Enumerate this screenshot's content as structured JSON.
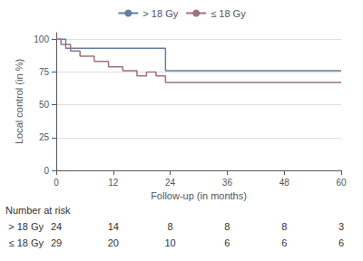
{
  "chart_data": {
    "type": "step",
    "xlabel": "Follow-up (in months)",
    "ylabel": "Local control (in %)",
    "xlim": [
      0,
      60
    ],
    "xticks": [
      0,
      12,
      24,
      36,
      48,
      60
    ],
    "ylim": [
      0,
      105
    ],
    "yticks": [
      0,
      25,
      50,
      75,
      100
    ],
    "grid": true,
    "legend": "top",
    "series": [
      {
        "name": "> 18 Gy",
        "color": "#6080a0",
        "x": [
          0,
          1,
          2,
          22,
          23,
          60
        ],
        "values": [
          100,
          100,
          93,
          93,
          76,
          76
        ]
      },
      {
        "name": "≤ 18 Gy",
        "color": "#a07080",
        "x": [
          0,
          1,
          3,
          5,
          8,
          11,
          14,
          17,
          19,
          21,
          23,
          60
        ],
        "values": [
          100,
          96,
          91,
          87,
          83,
          79,
          76,
          72,
          75,
          72,
          67,
          67
        ]
      }
    ],
    "risk_table": {
      "title": "Number at risk",
      "x": [
        0,
        12,
        24,
        36,
        48,
        60
      ],
      "rows": [
        {
          "label": "> 18 Gy",
          "values": [
            24,
            14,
            8,
            8,
            8,
            3
          ]
        },
        {
          "label": "≤ 18 Gy",
          "values": [
            29,
            20,
            10,
            6,
            6,
            6
          ]
        }
      ]
    }
  }
}
